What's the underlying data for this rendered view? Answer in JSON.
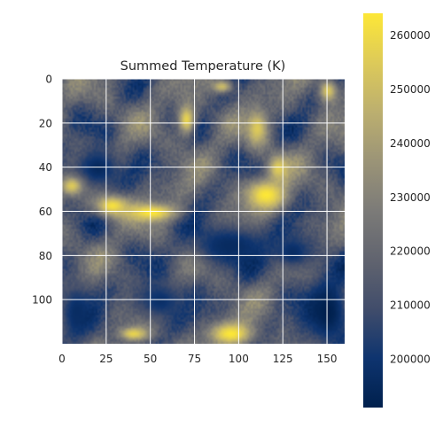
{
  "chart_data": {
    "type": "heatmap",
    "title": "Summed Temperature (K)",
    "xlabel": "",
    "ylabel": "",
    "xlim": [
      0,
      160
    ],
    "ylim": [
      120,
      0
    ],
    "x_ticks": [
      0,
      25,
      50,
      75,
      100,
      125,
      150
    ],
    "y_ticks": [
      0,
      20,
      40,
      60,
      80,
      100
    ],
    "grid": true,
    "colormap": "cividis",
    "colorbar": {
      "min": 191000,
      "max": 264000,
      "ticks": [
        200000,
        210000,
        220000,
        230000,
        240000,
        250000,
        260000
      ]
    },
    "colors": {
      "low": "#00204d",
      "mid": "#7c7b78",
      "high": "#fde737"
    },
    "hot_regions": [
      {
        "x": 28,
        "y": 57,
        "rx": 10,
        "ry": 5,
        "value": 262000
      },
      {
        "x": 50,
        "y": 60,
        "rx": 14,
        "ry": 4,
        "value": 264000
      },
      {
        "x": 70,
        "y": 18,
        "rx": 5,
        "ry": 7,
        "value": 258000
      },
      {
        "x": 115,
        "y": 52,
        "rx": 12,
        "ry": 7,
        "value": 264000
      },
      {
        "x": 122,
        "y": 40,
        "rx": 6,
        "ry": 6,
        "value": 256000
      },
      {
        "x": 110,
        "y": 22,
        "rx": 6,
        "ry": 8,
        "value": 255000
      },
      {
        "x": 95,
        "y": 115,
        "rx": 12,
        "ry": 5,
        "value": 264000
      },
      {
        "x": 40,
        "y": 115,
        "rx": 8,
        "ry": 3,
        "value": 258000
      },
      {
        "x": 5,
        "y": 48,
        "rx": 6,
        "ry": 4,
        "value": 255000
      },
      {
        "x": 150,
        "y": 5,
        "rx": 5,
        "ry": 5,
        "value": 254000
      },
      {
        "x": 90,
        "y": 3,
        "rx": 6,
        "ry": 3,
        "value": 250000
      }
    ],
    "cold_regions": [
      {
        "x": 20,
        "y": 40,
        "rx": 14,
        "ry": 10,
        "value": 195000
      },
      {
        "x": 150,
        "y": 105,
        "rx": 14,
        "ry": 18,
        "value": 191000
      },
      {
        "x": 95,
        "y": 75,
        "rx": 25,
        "ry": 10,
        "value": 196000
      },
      {
        "x": 55,
        "y": 100,
        "rx": 15,
        "ry": 10,
        "value": 198000
      },
      {
        "x": 8,
        "y": 105,
        "rx": 10,
        "ry": 14,
        "value": 197000
      },
      {
        "x": 130,
        "y": 78,
        "rx": 12,
        "ry": 8,
        "value": 197000
      }
    ]
  }
}
